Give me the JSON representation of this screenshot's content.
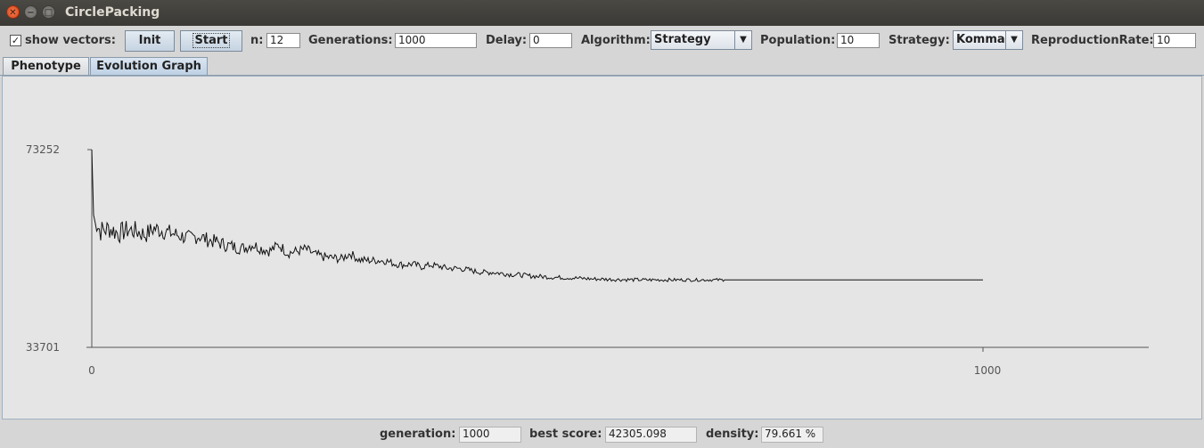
{
  "window": {
    "title": "CirclePacking"
  },
  "toolbar": {
    "show_vectors_label": "show vectors:",
    "show_vectors_checked": true,
    "init_label": "Init",
    "start_label": "Start",
    "n_label": "n:",
    "n_value": "12",
    "generations_label": "Generations:",
    "generations_value": "1000",
    "delay_label": "Delay:",
    "delay_value": "0",
    "algorithm_label": "Algorithm:",
    "algorithm_value": "Strategy",
    "population_label": "Population:",
    "population_value": "10",
    "strategy_label": "Strategy:",
    "strategy_value": "Komma",
    "reproduction_label": "ReproductionRate:",
    "reproduction_value": "10"
  },
  "tabs": [
    {
      "label": "Phenotype",
      "active": false
    },
    {
      "label": "Evolution Graph",
      "active": true
    }
  ],
  "chart_data": {
    "type": "line",
    "title": "",
    "xlabel": "",
    "ylabel": "",
    "y_ticks": [
      "73252",
      "33701"
    ],
    "x_ticks": [
      "0",
      "1000"
    ],
    "xlim": [
      0,
      1000
    ],
    "ylim": [
      33701,
      73252
    ],
    "series": [
      {
        "x": [
          0,
          2,
          4,
          10,
          20,
          30,
          40,
          50,
          60,
          70,
          80,
          90,
          100,
          110,
          120,
          130,
          140,
          150,
          160,
          170,
          180,
          190,
          200,
          210,
          220,
          230,
          240,
          250,
          260,
          270,
          280,
          290,
          300,
          310,
          320,
          330,
          340,
          350,
          360,
          370,
          380,
          390,
          400,
          410,
          420,
          430,
          440,
          450,
          460,
          470,
          480,
          490,
          500,
          520,
          540,
          560,
          580,
          600,
          620,
          640,
          660,
          680,
          700,
          710,
          720,
          800,
          900,
          1000
        ],
        "y": [
          73252,
          60200,
          58500,
          57000,
          57500,
          56500,
          57200,
          57000,
          56200,
          57500,
          57000,
          56500,
          56000,
          55500,
          56000,
          55200,
          54800,
          54200,
          53800,
          53500,
          54300,
          53500,
          53000,
          54200,
          52600,
          52900,
          53400,
          52300,
          51800,
          51600,
          51400,
          52500,
          51200,
          51100,
          51100,
          51000,
          50400,
          50200,
          50400,
          49800,
          50200,
          49900,
          49500,
          49500,
          49300,
          48900,
          48700,
          48700,
          48500,
          48300,
          48200,
          48000,
          47900,
          47700,
          47600,
          47400,
          47300,
          47250,
          47200,
          47200,
          47200,
          47200,
          47200,
          47200,
          47200,
          47200,
          47200,
          47200
        ]
      }
    ],
    "grid": false
  },
  "statusbar": {
    "generation_label": "generation:",
    "generation_value": "1000",
    "best_score_label": "best score:",
    "best_score_value": "42305.098",
    "density_label": "density:",
    "density_value": "79.661 %"
  }
}
